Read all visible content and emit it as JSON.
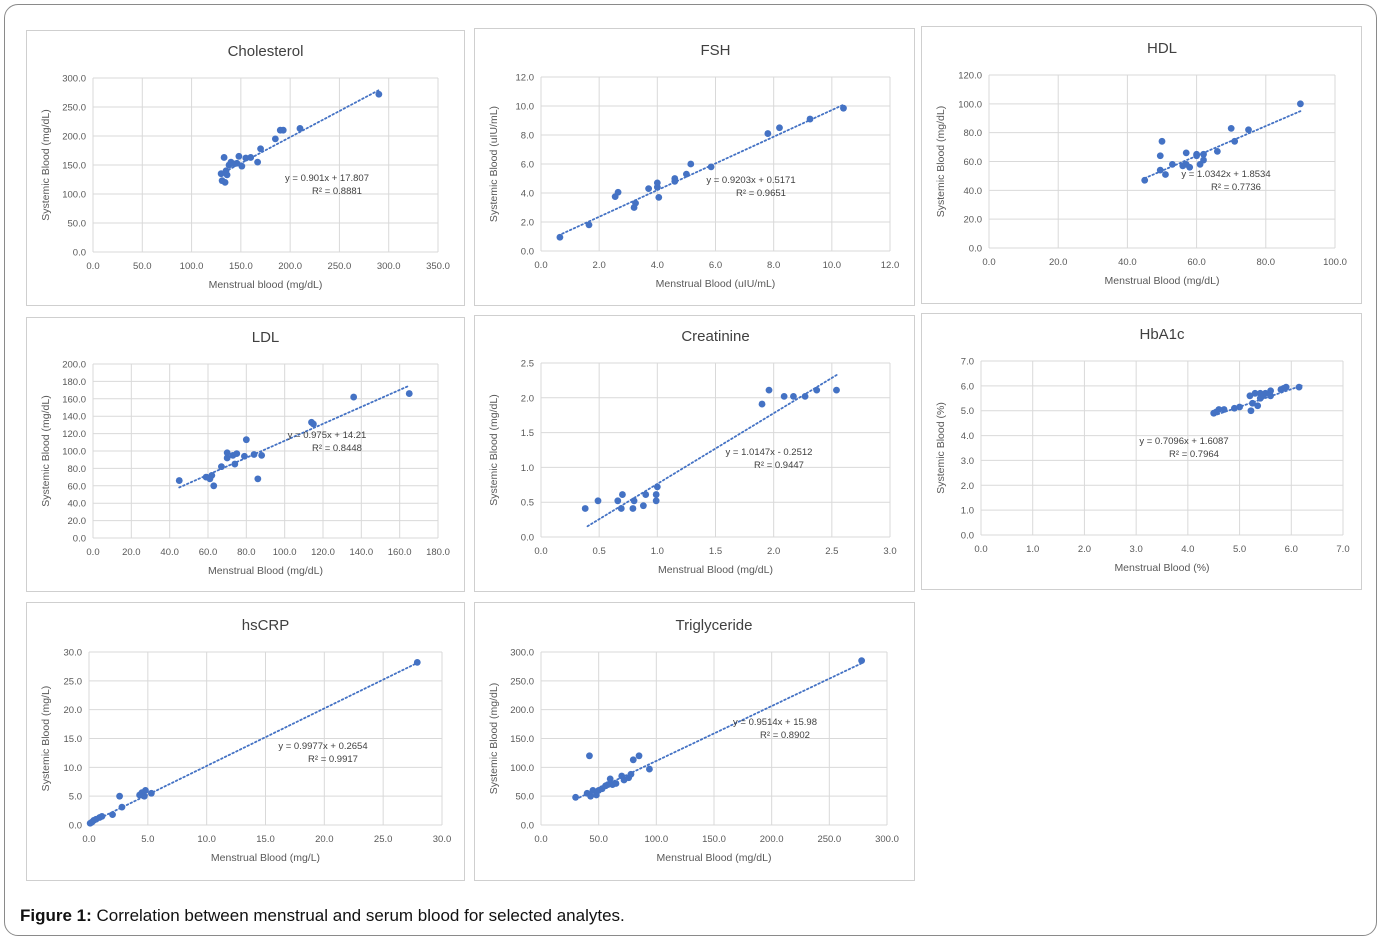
{
  "figure_caption": {
    "label": "Figure 1:",
    "text": " Correlation between menstrual and serum blood for selected analytes."
  },
  "colors": {
    "marker": "#4472C4",
    "trendline": "#4472C4",
    "grid": "#d9d9d9",
    "text": "#595959",
    "title": "#404040"
  },
  "chart_data": [
    {
      "type": "scatter",
      "title": "Cholesterol",
      "xlabel": "Menstrual blood (mg/dL)",
      "ylabel": "Systemic Blood (mg/dL)",
      "xlim": [
        0,
        350
      ],
      "ylim": [
        0,
        300
      ],
      "xticks": [
        "0.0",
        "50.0",
        "100.0",
        "150.0",
        "200.0",
        "250.0",
        "300.0",
        "350.0"
      ],
      "yticks": [
        "0.0",
        "50.0",
        "100.0",
        "150.0",
        "200.0",
        "250.0",
        "300.0"
      ],
      "xtick_values": [
        0,
        50,
        100,
        150,
        200,
        250,
        300,
        350
      ],
      "ytick_values": [
        0,
        50,
        100,
        150,
        200,
        250,
        300
      ],
      "trendline": {
        "slope": 0.901,
        "intercept": 17.807,
        "x_range": [
          130,
          290
        ]
      },
      "equation": "y = 0.901x + 17.807",
      "r2": "R² = 0.8881",
      "points": [
        [
          130,
          135
        ],
        [
          131,
          123
        ],
        [
          133,
          163
        ],
        [
          134,
          120
        ],
        [
          135,
          140
        ],
        [
          136,
          133
        ],
        [
          138,
          150
        ],
        [
          140,
          155
        ],
        [
          143,
          152
        ],
        [
          146,
          153
        ],
        [
          148,
          165
        ],
        [
          151,
          148
        ],
        [
          155,
          162
        ],
        [
          160,
          163
        ],
        [
          167,
          155
        ],
        [
          170,
          178
        ],
        [
          185,
          195
        ],
        [
          190,
          210
        ],
        [
          193,
          210
        ],
        [
          210,
          213
        ],
        [
          290,
          272
        ]
      ]
    },
    {
      "type": "scatter",
      "title": "FSH",
      "xlabel": "Menstrual Blood (uIU/mL)",
      "ylabel": "Systemic Blood (uIU/mL)",
      "xlim": [
        0,
        12
      ],
      "ylim": [
        0,
        12
      ],
      "xticks": [
        "0.0",
        "2.0",
        "4.0",
        "6.0",
        "8.0",
        "10.0",
        "12.0"
      ],
      "yticks": [
        "0.0",
        "2.0",
        "4.0",
        "6.0",
        "8.0",
        "10.0",
        "12.0"
      ],
      "xtick_values": [
        0,
        2,
        4,
        6,
        8,
        10,
        12
      ],
      "ytick_values": [
        0,
        2,
        4,
        6,
        8,
        10,
        12
      ],
      "trendline": {
        "slope": 0.9203,
        "intercept": 0.5171,
        "x_range": [
          0.6,
          10.4
        ]
      },
      "equation": "y = 0.9203x + 0.5171",
      "r2": "R² = 0.9651",
      "points": [
        [
          0.65,
          0.95
        ],
        [
          1.65,
          1.8
        ],
        [
          2.55,
          3.75
        ],
        [
          2.65,
          4.05
        ],
        [
          3.2,
          3.0
        ],
        [
          3.25,
          3.3
        ],
        [
          3.7,
          4.3
        ],
        [
          4.0,
          4.7
        ],
        [
          4.0,
          4.4
        ],
        [
          4.05,
          3.7
        ],
        [
          4.6,
          5.0
        ],
        [
          4.6,
          4.8
        ],
        [
          5.0,
          5.3
        ],
        [
          5.15,
          6.0
        ],
        [
          5.85,
          5.8
        ],
        [
          7.8,
          8.1
        ],
        [
          8.2,
          8.5
        ],
        [
          9.25,
          9.1
        ],
        [
          10.4,
          9.85
        ]
      ]
    },
    {
      "type": "scatter",
      "title": "HDL",
      "xlabel": "Menstrual Blood (mg/dL)",
      "ylabel": "Systemic Blood (mg/dL)",
      "xlim": [
        0,
        100
      ],
      "ylim": [
        0,
        120
      ],
      "xticks": [
        "0.0",
        "20.0",
        "40.0",
        "60.0",
        "80.0",
        "100.0"
      ],
      "yticks": [
        "0.0",
        "20.0",
        "40.0",
        "60.0",
        "80.0",
        "100.0",
        "120.0"
      ],
      "xtick_values": [
        0,
        20,
        40,
        60,
        80,
        100
      ],
      "ytick_values": [
        0,
        20,
        40,
        60,
        80,
        100,
        120
      ],
      "trendline": {
        "slope": 1.0342,
        "intercept": 1.8534,
        "x_range": [
          45,
          90
        ]
      },
      "equation": "y = 1.0342x + 1.8534",
      "r2": "R² = 0.7736",
      "points": [
        [
          45,
          47
        ],
        [
          49.5,
          54
        ],
        [
          49.5,
          64
        ],
        [
          50,
          74
        ],
        [
          51,
          51
        ],
        [
          53,
          58
        ],
        [
          56,
          57
        ],
        [
          57,
          66
        ],
        [
          57,
          58
        ],
        [
          58,
          56
        ],
        [
          60,
          64
        ],
        [
          60,
          65
        ],
        [
          61,
          58
        ],
        [
          62,
          61
        ],
        [
          62,
          65
        ],
        [
          66,
          67
        ],
        [
          70,
          83
        ],
        [
          71,
          74
        ],
        [
          75,
          82
        ],
        [
          90,
          100
        ]
      ]
    },
    {
      "type": "scatter",
      "title": "LDL",
      "xlabel": "Menstrual Blood (mg/dL)",
      "ylabel": "Systemic Blood (mg/dL)",
      "xlim": [
        0,
        180
      ],
      "ylim": [
        0,
        200
      ],
      "xticks": [
        "0.0",
        "20.0",
        "40.0",
        "60.0",
        "80.0",
        "100.0",
        "120.0",
        "140.0",
        "160.0",
        "180.0"
      ],
      "yticks": [
        "0.0",
        "20.0",
        "40.0",
        "60.0",
        "80.0",
        "100.0",
        "120.0",
        "140.0",
        "160.0",
        "180.0",
        "200.0"
      ],
      "xtick_values": [
        0,
        20,
        40,
        60,
        80,
        100,
        120,
        140,
        160,
        180
      ],
      "ytick_values": [
        0,
        20,
        40,
        60,
        80,
        100,
        120,
        140,
        160,
        180,
        200
      ],
      "trendline": {
        "slope": 0.975,
        "intercept": 14.21,
        "x_range": [
          45,
          165
        ]
      },
      "equation": "y = 0.975x + 14.21",
      "r2": "R² = 0.8448",
      "points": [
        [
          45,
          66
        ],
        [
          59,
          70
        ],
        [
          61,
          68
        ],
        [
          62,
          72
        ],
        [
          63,
          60
        ],
        [
          67,
          82
        ],
        [
          70,
          98
        ],
        [
          70,
          92
        ],
        [
          73,
          95
        ],
        [
          74,
          85
        ],
        [
          75,
          97
        ],
        [
          79,
          94
        ],
        [
          80,
          113
        ],
        [
          84,
          96
        ],
        [
          86,
          68
        ],
        [
          88,
          95
        ],
        [
          114,
          133
        ],
        [
          115,
          131
        ],
        [
          136,
          162
        ],
        [
          165,
          166
        ]
      ]
    },
    {
      "type": "scatter",
      "title": "Creatinine",
      "xlabel": "Menstrual Blood (mg/dL)",
      "ylabel": "Systemic Blood (mg/dL)",
      "xlim": [
        0,
        3
      ],
      "ylim": [
        0,
        2.5
      ],
      "xticks": [
        "0.0",
        "0.5",
        "1.0",
        "1.5",
        "2.0",
        "2.5",
        "3.0"
      ],
      "yticks": [
        "0.0",
        "0.5",
        "1.0",
        "1.5",
        "2.0",
        "2.5"
      ],
      "xtick_values": [
        0,
        0.5,
        1.0,
        1.5,
        2.0,
        2.5,
        3.0
      ],
      "ytick_values": [
        0,
        0.5,
        1.0,
        1.5,
        2.0,
        2.5
      ],
      "trendline": {
        "slope": 1.0147,
        "intercept": -0.2512,
        "x_range": [
          0.4,
          2.55
        ]
      },
      "equation": "y = 1.0147x - 0.2512",
      "r2": "R² = 0.9447",
      "points": [
        [
          0.38,
          0.41
        ],
        [
          0.49,
          0.52
        ],
        [
          0.66,
          0.52
        ],
        [
          0.69,
          0.41
        ],
        [
          0.7,
          0.61
        ],
        [
          0.79,
          0.41
        ],
        [
          0.8,
          0.52
        ],
        [
          0.88,
          0.45
        ],
        [
          0.9,
          0.61
        ],
        [
          0.99,
          0.52
        ],
        [
          0.99,
          0.61
        ],
        [
          1.0,
          0.72
        ],
        [
          1.9,
          1.91
        ],
        [
          1.96,
          2.11
        ],
        [
          2.09,
          2.02
        ],
        [
          2.17,
          2.02
        ],
        [
          2.27,
          2.02
        ],
        [
          2.37,
          2.11
        ],
        [
          2.54,
          2.11
        ]
      ]
    },
    {
      "type": "scatter",
      "title": "HbA1c",
      "xlabel": "Menstrual Blood (%)",
      "ylabel": "Systemic Blood (%)",
      "xlim": [
        0,
        7
      ],
      "ylim": [
        0,
        7
      ],
      "xticks": [
        "0.0",
        "1.0",
        "2.0",
        "3.0",
        "4.0",
        "5.0",
        "6.0",
        "7.0"
      ],
      "yticks": [
        "0.0",
        "1.0",
        "2.0",
        "3.0",
        "4.0",
        "5.0",
        "6.0",
        "7.0"
      ],
      "xtick_values": [
        0,
        1,
        2,
        3,
        4,
        5,
        6,
        7
      ],
      "ytick_values": [
        0,
        1,
        2,
        3,
        4,
        5,
        6,
        7
      ],
      "trendline": {
        "slope": 0.7096,
        "intercept": 1.6087,
        "x_range": [
          4.5,
          6.2
        ]
      },
      "equation": "y = 0.7096x + 1.6087",
      "r2": "R² = 0.7964",
      "points": [
        [
          4.5,
          4.9
        ],
        [
          4.55,
          4.95
        ],
        [
          4.6,
          5.05
        ],
        [
          4.7,
          5.05
        ],
        [
          4.9,
          5.1
        ],
        [
          5.0,
          5.15
        ],
        [
          5.2,
          5.6
        ],
        [
          5.22,
          5.0
        ],
        [
          5.25,
          5.3
        ],
        [
          5.3,
          5.7
        ],
        [
          5.35,
          5.2
        ],
        [
          5.4,
          5.5
        ],
        [
          5.4,
          5.7
        ],
        [
          5.45,
          5.6
        ],
        [
          5.5,
          5.7
        ],
        [
          5.6,
          5.6
        ],
        [
          5.6,
          5.8
        ],
        [
          5.8,
          5.85
        ],
        [
          5.85,
          5.9
        ],
        [
          5.9,
          5.95
        ],
        [
          6.15,
          5.95
        ]
      ]
    },
    {
      "type": "scatter",
      "title": "hsCRP",
      "xlabel": "Menstrual Blood (mg/L)",
      "ylabel": "Systemic Blood (mg/L)",
      "xlim": [
        0,
        30
      ],
      "ylim": [
        0,
        30
      ],
      "xticks": [
        "0.0",
        "5.0",
        "10.0",
        "15.0",
        "20.0",
        "25.0",
        "30.0"
      ],
      "yticks": [
        "0.0",
        "5.0",
        "10.0",
        "15.0",
        "20.0",
        "25.0",
        "30.0"
      ],
      "xtick_values": [
        0,
        5,
        10,
        15,
        20,
        25,
        30
      ],
      "ytick_values": [
        0,
        5,
        10,
        15,
        20,
        25,
        30
      ],
      "trendline": {
        "slope": 0.9977,
        "intercept": 0.2654,
        "x_range": [
          0,
          28
        ]
      },
      "equation": "y = 0.9977x + 0.2654",
      "r2": "R² = 0.9917",
      "points": [
        [
          0.1,
          0.3
        ],
        [
          0.25,
          0.5
        ],
        [
          0.4,
          0.8
        ],
        [
          0.6,
          1.0
        ],
        [
          0.9,
          1.3
        ],
        [
          1.1,
          1.5
        ],
        [
          2.0,
          1.8
        ],
        [
          2.6,
          5.0
        ],
        [
          2.8,
          3.1
        ],
        [
          4.3,
          5.2
        ],
        [
          4.5,
          5.6
        ],
        [
          4.7,
          5.0
        ],
        [
          4.8,
          6.0
        ],
        [
          5.3,
          5.5
        ],
        [
          27.9,
          28.2
        ]
      ]
    },
    {
      "type": "scatter",
      "title": "Triglyceride",
      "xlabel": "Menstrual Blood (mg/dL)",
      "ylabel": "Systemic Blood (mg/dL)",
      "xlim": [
        0,
        300
      ],
      "ylim": [
        0,
        300
      ],
      "xticks": [
        "0.0",
        "50.0",
        "100.0",
        "150.0",
        "200.0",
        "250.0",
        "300.0"
      ],
      "yticks": [
        "0.0",
        "50.0",
        "100.0",
        "150.0",
        "200.0",
        "250.0",
        "300.0"
      ],
      "xtick_values": [
        0,
        50,
        100,
        150,
        200,
        250,
        300
      ],
      "ytick_values": [
        0,
        50,
        100,
        150,
        200,
        250,
        300
      ],
      "trendline": {
        "slope": 0.9514,
        "intercept": 15.98,
        "x_range": [
          30,
          278
        ]
      },
      "equation": "y = 0.9514x + 15.98",
      "r2": "R² = 0.8902",
      "points": [
        [
          30,
          48
        ],
        [
          40,
          55
        ],
        [
          42,
          120
        ],
        [
          43,
          50
        ],
        [
          45,
          60
        ],
        [
          48,
          52
        ],
        [
          50,
          60
        ],
        [
          53,
          63
        ],
        [
          56,
          68
        ],
        [
          58,
          70
        ],
        [
          60,
          80
        ],
        [
          62,
          70
        ],
        [
          65,
          72
        ],
        [
          70,
          85
        ],
        [
          72,
          78
        ],
        [
          76,
          82
        ],
        [
          78,
          88
        ],
        [
          80,
          113
        ],
        [
          85,
          120
        ],
        [
          94,
          97
        ],
        [
          278,
          285
        ]
      ]
    }
  ]
}
